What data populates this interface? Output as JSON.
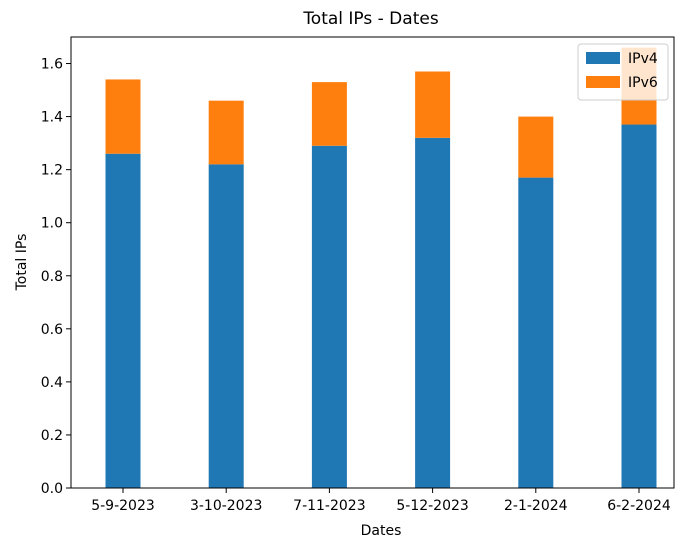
{
  "chart_data": {
    "type": "bar",
    "stacked": true,
    "title": "Total IPs - Dates",
    "xlabel": "Dates",
    "ylabel": "Total IPs",
    "categories": [
      "5-9-2023",
      "3-10-2023",
      "7-11-2023",
      "5-12-2023",
      "2-1-2024",
      "6-2-2024"
    ],
    "series": [
      {
        "name": "IPv4",
        "color": "#1f77b4",
        "values": [
          1.26,
          1.22,
          1.29,
          1.32,
          1.17,
          1.37
        ]
      },
      {
        "name": "IPv6",
        "color": "#ff7f0e",
        "values": [
          0.28,
          0.24,
          0.24,
          0.25,
          0.23,
          0.29
        ]
      }
    ],
    "ylim": [
      0,
      1.7
    ],
    "yticks": [
      0.0,
      0.2,
      0.4,
      0.6,
      0.8,
      1.0,
      1.2,
      1.4,
      1.6
    ],
    "ytick_labels": [
      "0.0",
      "0.2",
      "0.4",
      "0.6",
      "0.8",
      "1.0",
      "1.2",
      "1.4",
      "1.6"
    ],
    "grid": false,
    "legend_position": "top-right"
  }
}
